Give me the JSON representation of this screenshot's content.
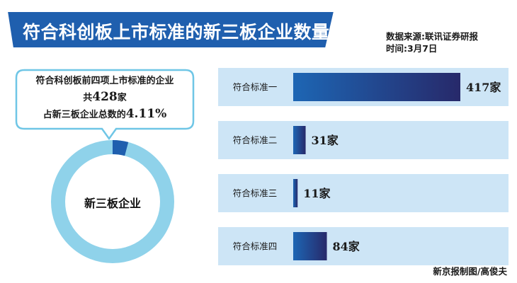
{
  "title": "符合科创板上市标准的新三板企业数量",
  "source": {
    "line1": "数据来源:联讯证券研报",
    "line2": "时间:3月7日"
  },
  "credit": "新京报制图/高俊夫",
  "callout": {
    "line1": "符合科创板前四项上市标准的企业",
    "line2_prefix": "共",
    "line2_value": "428",
    "line2_suffix": "家",
    "line3_prefix": "占新三板企业总数的",
    "line3_value": "4.11%"
  },
  "donut": {
    "label": "新三板企业",
    "share_percent": 4.11
  },
  "colors": {
    "banner": "#1f5fae",
    "bar_start": "#1d66b4",
    "bar_end": "#27296a",
    "band": "#cde5f6",
    "ring": "#8fd2ea",
    "ring_highlight": "#1f5fae",
    "bubble_border": "#6fc6e6"
  },
  "chart_data": {
    "type": "bar",
    "orientation": "horizontal",
    "categories": [
      "符合标准一",
      "符合标准二",
      "符合标准三",
      "符合标准四"
    ],
    "values": [
      417,
      31,
      11,
      84
    ],
    "labels": [
      "417家",
      "31家",
      "11家",
      "84家"
    ],
    "unit": "家",
    "xlim": [
      0,
      417
    ]
  }
}
